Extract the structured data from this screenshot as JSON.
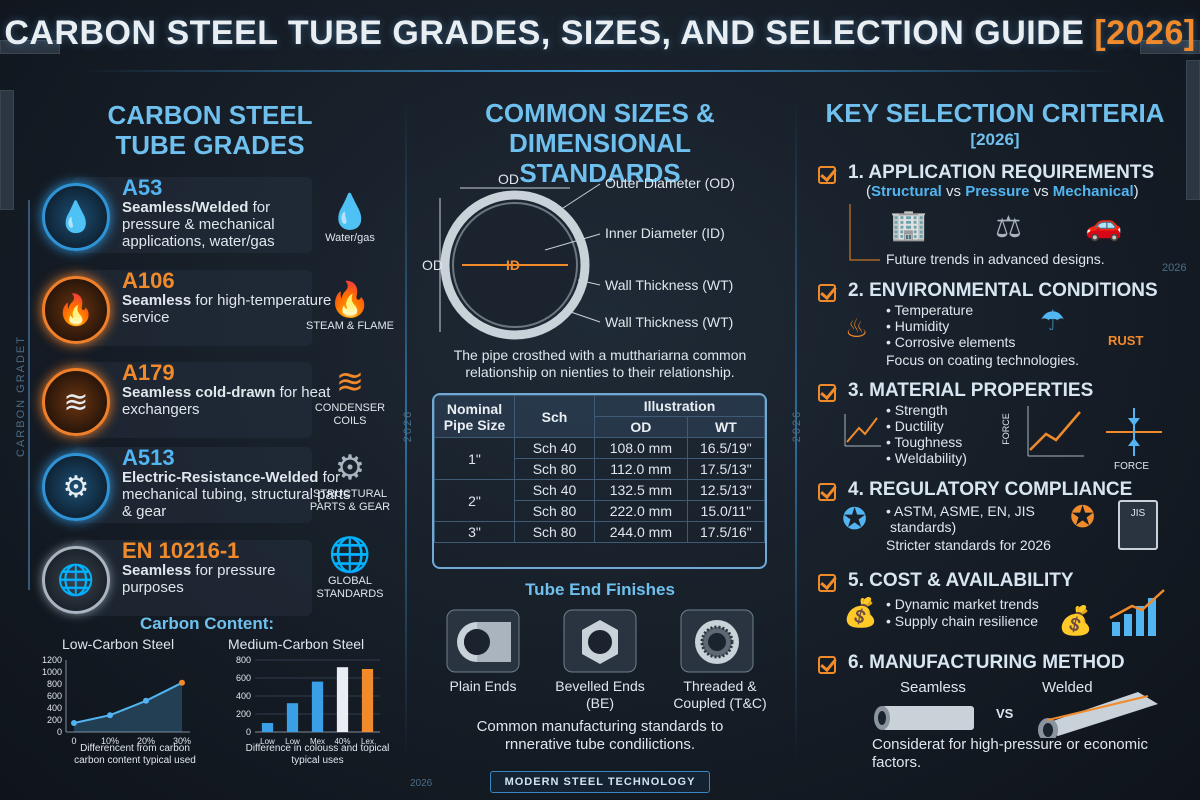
{
  "title": {
    "main": "CARBON STEEL TUBE GRADES, SIZES, AND SELECTION GUIDE",
    "year": "[2026]"
  },
  "colors": {
    "accent_blue": "#52b4f0",
    "accent_orange": "#f08a2b",
    "heading": "#6fc0ee",
    "background": "#151c25"
  },
  "side_labels": {
    "left": "CARBON GRADET",
    "div1": "2026",
    "div2": "2026",
    "right": "2026",
    "bottom_left": "2026"
  },
  "grades": {
    "heading_line1": "CARBON STEEL",
    "heading_line2": "TUBE GRADES",
    "items": [
      {
        "name": "A53",
        "desc_bold": "Seamless/Welded",
        "desc": " for pressure & mechanical applications, water/gas",
        "icon": "water-drop-icon",
        "app_icon": "water-drops-icon",
        "app_label": "Water/gas"
      },
      {
        "name": "A106",
        "desc_bold": "Seamless",
        "desc": " for high-temperature service",
        "icon": "flame-icon",
        "app_icon": "fire-icon",
        "app_label": "STEAM & FLAME"
      },
      {
        "name": "A179",
        "desc_bold": "Seamless cold-drawn",
        "desc": " for heat exchangers",
        "icon": "coil-icon",
        "app_icon": "condenser-coil-icon",
        "app_label": "CONDENSER COILS"
      },
      {
        "name": "A513",
        "desc_bold": "Electric-Resistance-Welded",
        "desc": " for mechanical tubing, structural parts & gear",
        "icon": "gear-icon",
        "app_icon": "gears-icon",
        "app_label": "STRUCTURAL PARTS & GEAR"
      },
      {
        "name": "EN 10216-1",
        "desc_bold": "Seamless",
        "desc": " for pressure purposes",
        "icon": "globe-icon",
        "app_icon": "globe-icon",
        "app_label": "GLOBAL STANDARDS"
      }
    ]
  },
  "carbon_content": {
    "heading": "Carbon Content:",
    "low": {
      "label": "Low-Carbon Steel",
      "caption": "Differencent from carbon carbon content typical used"
    },
    "medium": {
      "label": "Medium-Carbon Steel",
      "caption": "Difference in colouss and topical typical uses"
    }
  },
  "chart_data": [
    {
      "type": "line",
      "title": "Low-Carbon Steel",
      "x": [
        "0",
        "10%",
        "20%",
        "30%"
      ],
      "values": [
        150,
        280,
        520,
        820
      ],
      "yticks": [
        "1200",
        "1000",
        "800",
        "600",
        "400",
        "200",
        "0"
      ],
      "ylim": [
        0,
        1200
      ],
      "grid": false
    },
    {
      "type": "bar",
      "title": "Medium-Carbon Steel",
      "categories": [
        "Low",
        "Low",
        "Mex",
        "40%",
        "Lex"
      ],
      "values": [
        100,
        320,
        560,
        720,
        700
      ],
      "yticks": [
        "800",
        "600",
        "400",
        "200",
        "0"
      ],
      "ylim": [
        0,
        800
      ],
      "grid": true
    }
  ],
  "sizes": {
    "heading_line1": "COMMON SIZES &",
    "heading_line2": "DIMENSIONAL STANDARDS",
    "diagram": {
      "od_top": "OD",
      "od_side": "OD",
      "id": "ID",
      "label_od": "Outer Diameter (OD)",
      "label_id": "Inner Diameter (ID)",
      "label_wt1": "Wall Thickness (WT)",
      "label_wt2": "Wall Thickness (WT)"
    },
    "note": "The pipe crosthed with a mutthariarna common relationship on nienties to their relationship.",
    "table": {
      "h_nps": "Nominal Pipe Size",
      "h_sch": "Sch",
      "h_ill": "Illustration",
      "h_od": "OD",
      "h_wt": "WT",
      "rows": [
        {
          "nps": "1\"",
          "sch": "Sch 40",
          "od": "108.0 mm",
          "wt": "16.5/19\""
        },
        {
          "nps": "",
          "sch": "Sch 80",
          "od": "112.0 mm",
          "wt": "17.5/13\""
        },
        {
          "nps": "2\"",
          "sch": "Sch 40",
          "od": "132.5 mm",
          "wt": "12.5/13\""
        },
        {
          "nps": "",
          "sch": "Sch 80",
          "od": "222.0 mm",
          "wt": "15.0/11\""
        },
        {
          "nps": "3\"",
          "sch": "Sch 80",
          "od": "244.0 mm",
          "wt": "17.5/16\""
        }
      ]
    },
    "finishes": {
      "heading": "Tube End Finishes",
      "items": [
        {
          "label": "Plain Ends"
        },
        {
          "label": "Bevelled Ends (BE)"
        },
        {
          "label": "Threaded & Coupled (T&C)"
        }
      ]
    },
    "footer": "Common manufacturing standards to rnnerative tube condilictions."
  },
  "criteria": {
    "heading": "KEY SELECTION CRITERIA",
    "subheading": "[2026]",
    "items": [
      {
        "title": "1. APPLICATION REQUIREMENTS",
        "sub_a": "Structural",
        "sub_b": " vs ",
        "sub_c": "Pressure",
        "sub_d": " vs ",
        "sub_e": "Mechanical",
        "note": "Future trends in advanced designs."
      },
      {
        "title": "2. ENVIRONMENTAL CONDITIONS",
        "bullets": [
          "• Temperature",
          "• Humidity",
          "• Corrosive elements"
        ],
        "note": "Focus on coating technologies.",
        "badge": "RUST"
      },
      {
        "title": "3. MATERIAL PROPERTIES",
        "bullets": [
          "• Strength",
          "• Ductility",
          "• Toughness",
          "• Weldability)"
        ],
        "axis_force": "FORCE",
        "axis_force2": "FORCE"
      },
      {
        "title": "4. REGULATORY COMPLIANCE",
        "bullets": [
          "• ASTM, ASME, EN, JIS",
          "standards)"
        ],
        "note": "Stricter standards for 2026",
        "doc_label": "JIS"
      },
      {
        "title": "5. COST & AVAILABILITY",
        "bullets": [
          "• Dynamic market trends",
          "• Supply chain resilience"
        ]
      },
      {
        "title": "6. MANUFACTURING METHOD",
        "seamless": "Seamless",
        "welded": "Welded",
        "vs": "VS",
        "note": "Considerat for high-pressure or economic factors."
      }
    ]
  },
  "bottom_tag": "MODERN STEEL TECHNOLOGY"
}
